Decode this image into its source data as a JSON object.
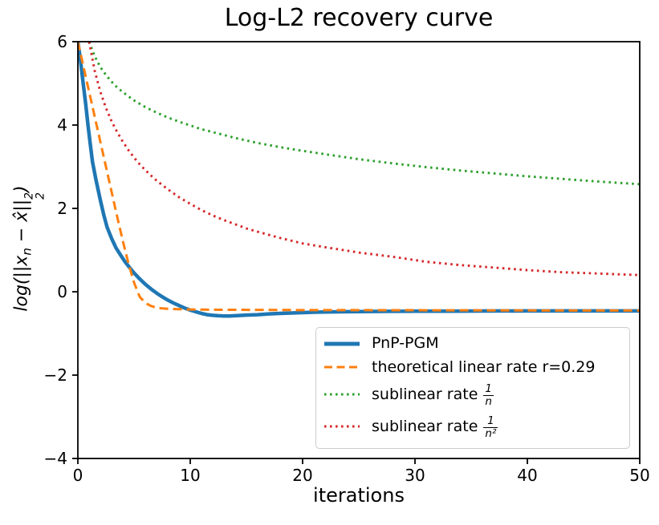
{
  "chart_data": {
    "type": "line",
    "title": "Log-L2 recovery curve",
    "xlabel": "iterations",
    "ylabel": "log(||x_n − x̂||₂²)",
    "xlim": [
      0,
      50
    ],
    "ylim": [
      -4,
      6
    ],
    "x_ticks": [
      0,
      10,
      20,
      30,
      40,
      50
    ],
    "y_ticks": [
      6,
      4,
      2,
      0,
      -2,
      -4
    ],
    "grid": false,
    "legend_position": "lower right inside axes",
    "series": [
      {
        "name": "PnP-PGM",
        "color": "#1f77b4",
        "style": "solid",
        "width": 4.5,
        "points": [
          [
            0,
            6.0
          ],
          [
            0.2,
            5.62
          ],
          [
            0.45,
            5.05
          ],
          [
            0.7,
            4.5
          ],
          [
            0.9,
            4.0
          ],
          [
            1.1,
            3.55
          ],
          [
            1.3,
            3.12
          ],
          [
            1.6,
            2.7
          ],
          [
            2,
            2.2
          ],
          [
            2.3,
            1.85
          ],
          [
            2.6,
            1.55
          ],
          [
            3,
            1.28
          ],
          [
            3.4,
            1.05
          ],
          [
            3.8,
            0.88
          ],
          [
            4.2,
            0.72
          ],
          [
            4.6,
            0.58
          ],
          [
            5,
            0.45
          ],
          [
            5.5,
            0.31
          ],
          [
            6,
            0.18
          ],
          [
            6.5,
            0.07
          ],
          [
            7,
            -0.03
          ],
          [
            7.5,
            -0.12
          ],
          [
            8,
            -0.2
          ],
          [
            8.5,
            -0.27
          ],
          [
            9,
            -0.33
          ],
          [
            9.5,
            -0.39
          ],
          [
            10,
            -0.44
          ],
          [
            10.5,
            -0.48
          ],
          [
            11,
            -0.52
          ],
          [
            11.5,
            -0.55
          ],
          [
            12,
            -0.565
          ],
          [
            12.5,
            -0.575
          ],
          [
            13,
            -0.58
          ],
          [
            13.5,
            -0.58
          ],
          [
            14,
            -0.575
          ],
          [
            15,
            -0.56
          ],
          [
            16,
            -0.55
          ],
          [
            17,
            -0.53
          ],
          [
            18,
            -0.52
          ],
          [
            19,
            -0.51
          ],
          [
            20,
            -0.5
          ],
          [
            21,
            -0.49
          ],
          [
            22,
            -0.485
          ],
          [
            24,
            -0.478
          ],
          [
            26,
            -0.473
          ],
          [
            28,
            -0.47
          ],
          [
            30,
            -0.468
          ],
          [
            33,
            -0.465
          ],
          [
            36,
            -0.462
          ],
          [
            40,
            -0.46
          ],
          [
            45,
            -0.46
          ],
          [
            50,
            -0.46
          ]
        ]
      },
      {
        "name": "theoretical linear rate r=0.29",
        "color": "#ff7f0e",
        "style": "dashed",
        "width": 3,
        "points": [
          [
            0,
            6.0
          ],
          [
            0.5,
            5.4
          ],
          [
            1,
            4.8
          ],
          [
            1.5,
            4.2
          ],
          [
            2,
            3.6
          ],
          [
            2.5,
            3.0
          ],
          [
            3,
            2.4
          ],
          [
            3.5,
            1.8
          ],
          [
            4,
            1.22
          ],
          [
            4.5,
            0.68
          ],
          [
            5,
            0.22
          ],
          [
            5.5,
            -0.12
          ],
          [
            6,
            -0.27
          ],
          [
            6.5,
            -0.34
          ],
          [
            7,
            -0.38
          ],
          [
            7.5,
            -0.4
          ],
          [
            8,
            -0.41
          ],
          [
            9,
            -0.42
          ],
          [
            10,
            -0.425
          ],
          [
            12,
            -0.43
          ],
          [
            14,
            -0.433
          ],
          [
            16,
            -0.435
          ],
          [
            18,
            -0.437
          ],
          [
            20,
            -0.44
          ],
          [
            24,
            -0.44
          ],
          [
            28,
            -0.442
          ],
          [
            32,
            -0.444
          ],
          [
            36,
            -0.446
          ],
          [
            40,
            -0.448
          ],
          [
            45,
            -0.45
          ],
          [
            50,
            -0.45
          ]
        ]
      },
      {
        "name": "sublinear rate 1/n",
        "color": "#2ca02c",
        "style": "dotted",
        "width": 2.9,
        "points": [
          [
            1,
            6.0
          ],
          [
            1.5,
            5.65
          ],
          [
            2,
            5.39
          ],
          [
            2.5,
            5.2
          ],
          [
            3,
            5.04
          ],
          [
            3.5,
            4.9
          ],
          [
            4,
            4.79
          ],
          [
            5,
            4.59
          ],
          [
            6,
            4.43
          ],
          [
            7,
            4.3
          ],
          [
            8,
            4.18
          ],
          [
            9,
            4.08
          ],
          [
            10,
            3.99
          ],
          [
            11,
            3.9
          ],
          [
            12,
            3.83
          ],
          [
            14,
            3.69
          ],
          [
            16,
            3.57
          ],
          [
            18,
            3.47
          ],
          [
            20,
            3.38
          ],
          [
            22,
            3.3
          ],
          [
            25,
            3.18
          ],
          [
            28,
            3.08
          ],
          [
            31,
            2.99
          ],
          [
            34,
            2.91
          ],
          [
            37,
            2.84
          ],
          [
            40,
            2.77
          ],
          [
            43,
            2.71
          ],
          [
            46,
            2.65
          ],
          [
            50,
            2.58
          ]
        ]
      },
      {
        "name": "sublinear rate 1/n^2",
        "color": "#d62728",
        "style": "dotted",
        "width": 2.9,
        "points": [
          [
            1,
            6.0
          ],
          [
            1.5,
            5.3
          ],
          [
            2,
            4.8
          ],
          [
            2.5,
            4.41
          ],
          [
            3,
            4.09
          ],
          [
            3.5,
            3.83
          ],
          [
            4,
            3.6
          ],
          [
            4.5,
            3.4
          ],
          [
            5,
            3.22
          ],
          [
            5.5,
            3.06
          ],
          [
            6,
            2.92
          ],
          [
            6.5,
            2.79
          ],
          [
            7,
            2.67
          ],
          [
            8,
            2.46
          ],
          [
            9,
            2.27
          ],
          [
            10,
            2.11
          ],
          [
            11,
            1.96
          ],
          [
            12,
            1.83
          ],
          [
            13,
            1.72
          ],
          [
            14,
            1.62
          ],
          [
            15,
            1.52
          ],
          [
            16,
            1.44
          ],
          [
            18,
            1.29
          ],
          [
            20,
            1.16
          ],
          [
            22,
            1.07
          ],
          [
            25,
            0.94
          ],
          [
            28,
            0.84
          ],
          [
            31,
            0.72
          ],
          [
            34,
            0.64
          ],
          [
            37,
            0.58
          ],
          [
            40,
            0.52
          ],
          [
            43,
            0.47
          ],
          [
            46,
            0.44
          ],
          [
            50,
            0.4
          ]
        ]
      }
    ]
  },
  "ylabel_parts": {
    "p1": "log(||x",
    "sub_n": "n",
    "p2": " − x̂||",
    "sup2": "2",
    "sub2": "2",
    "p3": ")"
  },
  "legend": {
    "items": [
      {
        "label": "PnP-PGM"
      },
      {
        "label": "theoretical linear rate r=0.29"
      },
      {
        "prefix": "sublinear rate",
        "frac_num": "1",
        "frac_den": "n"
      },
      {
        "prefix": "sublinear rate",
        "frac_num": "1",
        "frac_den": "n²"
      }
    ]
  }
}
